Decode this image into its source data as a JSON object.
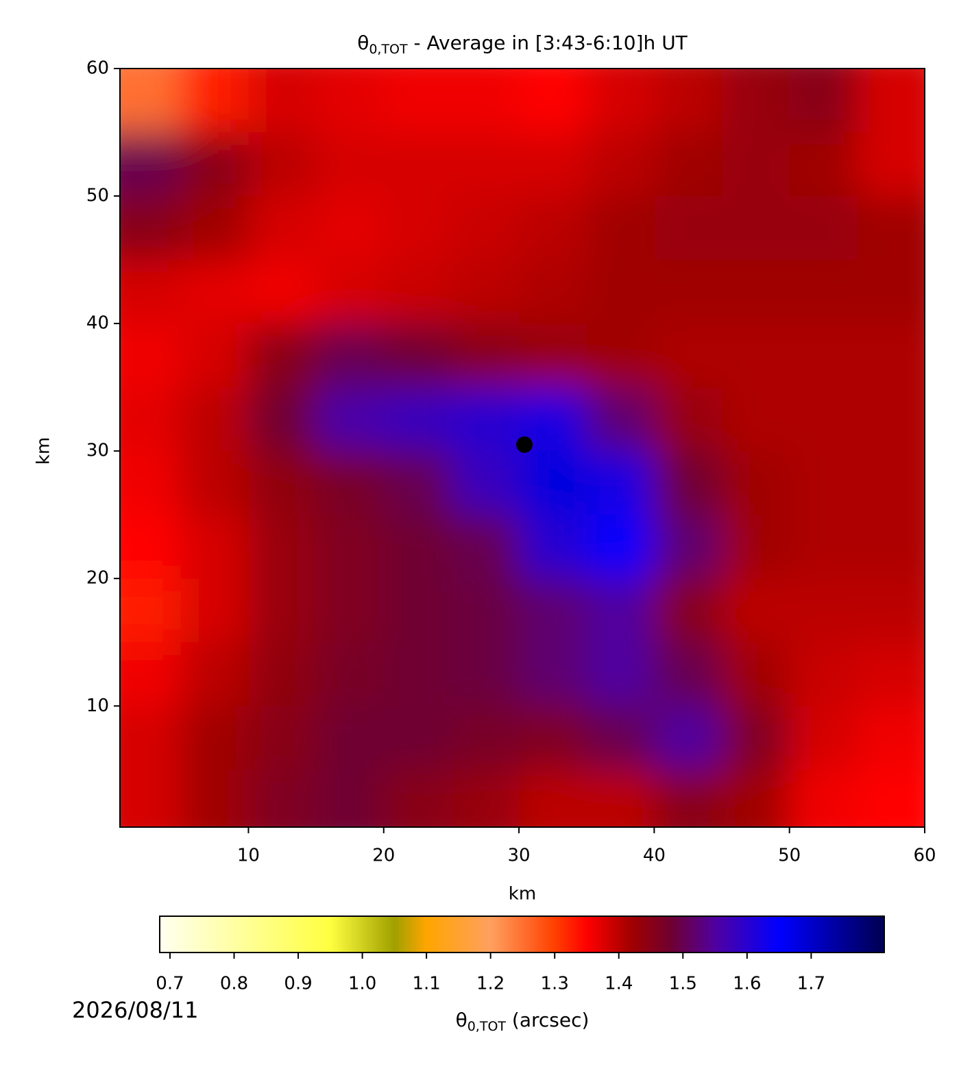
{
  "chart_data": {
    "type": "heatmap",
    "title": {
      "symbol": "θ",
      "sub": "0,TOT",
      "rest": " - Average in [3:43-6:10]h UT"
    },
    "xlabel": "km",
    "ylabel": "km",
    "xlim": [
      0.5,
      60
    ],
    "ylim": [
      0.5,
      60
    ],
    "xticks": [
      10,
      20,
      30,
      40,
      50,
      60
    ],
    "yticks": [
      10,
      20,
      30,
      40,
      50,
      60
    ],
    "x": [
      2.5,
      7.5,
      12.5,
      17.5,
      22.5,
      27.5,
      32.5,
      37.5,
      42.5,
      47.5,
      52.5,
      57.5
    ],
    "y": [
      57.5,
      52.5,
      47.5,
      42.5,
      37.5,
      32.5,
      27.5,
      22.5,
      17.5,
      12.5,
      7.5,
      2.5
    ],
    "z": [
      [
        1.25,
        1.33,
        1.38,
        1.37,
        1.36,
        1.36,
        1.35,
        1.38,
        1.4,
        1.43,
        1.45,
        1.38
      ],
      [
        1.5,
        1.45,
        1.4,
        1.38,
        1.38,
        1.38,
        1.38,
        1.4,
        1.42,
        1.43,
        1.42,
        1.38
      ],
      [
        1.45,
        1.42,
        1.38,
        1.37,
        1.38,
        1.39,
        1.4,
        1.42,
        1.43,
        1.43,
        1.43,
        1.42
      ],
      [
        1.38,
        1.37,
        1.36,
        1.38,
        1.39,
        1.4,
        1.41,
        1.42,
        1.42,
        1.42,
        1.42,
        1.42
      ],
      [
        1.36,
        1.38,
        1.45,
        1.5,
        1.48,
        1.45,
        1.43,
        1.42,
        1.41,
        1.41,
        1.41,
        1.41
      ],
      [
        1.37,
        1.4,
        1.48,
        1.56,
        1.58,
        1.6,
        1.62,
        1.52,
        1.43,
        1.41,
        1.41,
        1.41
      ],
      [
        1.36,
        1.4,
        1.44,
        1.47,
        1.5,
        1.58,
        1.68,
        1.62,
        1.48,
        1.42,
        1.41,
        1.41
      ],
      [
        1.35,
        1.38,
        1.43,
        1.46,
        1.48,
        1.5,
        1.6,
        1.65,
        1.52,
        1.42,
        1.41,
        1.41
      ],
      [
        1.33,
        1.38,
        1.43,
        1.46,
        1.48,
        1.49,
        1.52,
        1.55,
        1.45,
        1.4,
        1.4,
        1.4
      ],
      [
        1.36,
        1.4,
        1.44,
        1.47,
        1.48,
        1.49,
        1.52,
        1.55,
        1.5,
        1.42,
        1.39,
        1.38
      ],
      [
        1.38,
        1.42,
        1.45,
        1.48,
        1.48,
        1.47,
        1.46,
        1.5,
        1.55,
        1.46,
        1.38,
        1.36
      ],
      [
        1.38,
        1.42,
        1.46,
        1.48,
        1.45,
        1.43,
        1.4,
        1.4,
        1.45,
        1.42,
        1.36,
        1.35
      ]
    ],
    "marker": {
      "x": 30.4,
      "y": 30.5,
      "color": "#000000"
    },
    "colormap": [
      [
        0.684,
        "#fffff0"
      ],
      [
        0.95,
        "#ffff40"
      ],
      [
        1.05,
        "#a0a000"
      ],
      [
        1.1,
        "#ffa500"
      ],
      [
        1.2,
        "#ffa060"
      ],
      [
        1.3,
        "#ff4000"
      ],
      [
        1.35,
        "#ff0000"
      ],
      [
        1.42,
        "#a00000"
      ],
      [
        1.48,
        "#700030"
      ],
      [
        1.55,
        "#5000a0"
      ],
      [
        1.65,
        "#0000ff"
      ],
      [
        1.814,
        "#000050"
      ]
    ],
    "colorbar": {
      "clim": [
        0.684,
        1.814
      ],
      "ticks": [
        {
          "value": 0.7,
          "label": "0.7"
        },
        {
          "value": 0.8,
          "label": "0.8"
        },
        {
          "value": 0.9,
          "label": "0.9"
        },
        {
          "value": 1.0,
          "label": "1.0"
        },
        {
          "value": 1.1,
          "label": "1.1"
        },
        {
          "value": 1.2,
          "label": "1.2"
        },
        {
          "value": 1.3,
          "label": "1.3"
        },
        {
          "value": 1.4,
          "label": "1.4"
        },
        1.5,
        1.6,
        1.7
      ],
      "label": {
        "symbol": "θ",
        "sub": "0,TOT",
        "rest": " (arcsec)"
      }
    },
    "date": "2026/08/11"
  }
}
